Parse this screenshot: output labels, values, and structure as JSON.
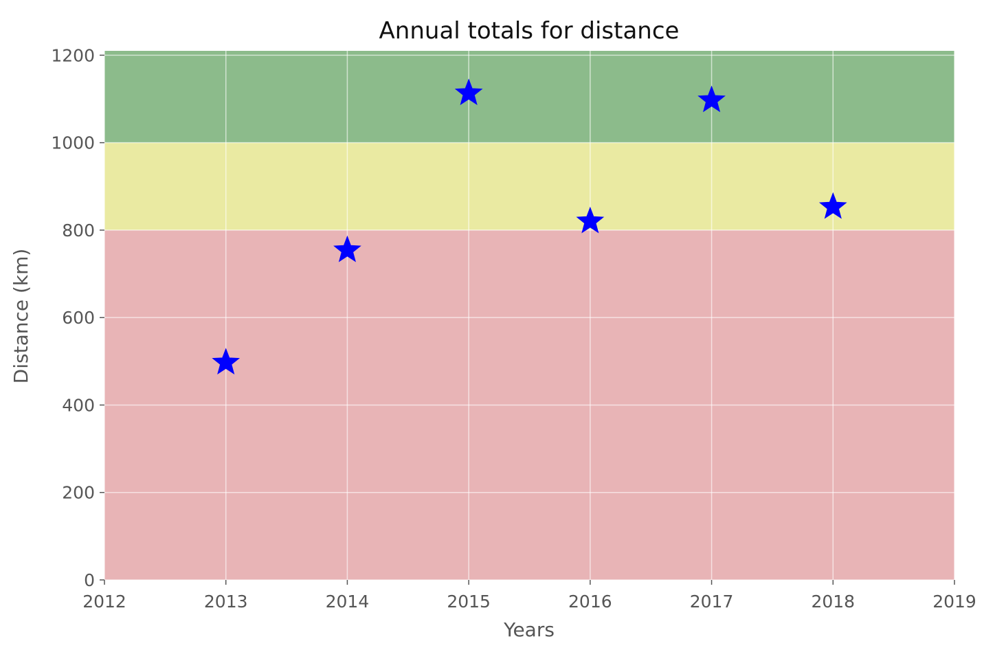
{
  "chart_data": {
    "type": "scatter",
    "title": "Annual totals for distance",
    "xlabel": "Years",
    "ylabel": "Distance (km)",
    "xlim": [
      2012,
      2019
    ],
    "ylim": [
      0,
      1210
    ],
    "x_ticks": [
      "2012",
      "2013",
      "2014",
      "2015",
      "2016",
      "2017",
      "2018",
      "2019"
    ],
    "y_ticks": [
      "0",
      "200",
      "400",
      "600",
      "800",
      "1000",
      "1200"
    ],
    "grid": true,
    "marker": "star",
    "marker_color": "#0000ff",
    "points": [
      {
        "x": 2013,
        "y": 497
      },
      {
        "x": 2014,
        "y": 754
      },
      {
        "x": 2015,
        "y": 1113
      },
      {
        "x": 2016,
        "y": 820
      },
      {
        "x": 2017,
        "y": 1097
      },
      {
        "x": 2018,
        "y": 853
      }
    ],
    "bands": [
      {
        "from": 0,
        "to": 800,
        "color": "#e8b4b6"
      },
      {
        "from": 800,
        "to": 1000,
        "color": "#eaeaa2"
      },
      {
        "from": 1000,
        "to": 1210,
        "color": "#8cbb8b"
      }
    ],
    "grid_color": "#ffffff"
  }
}
